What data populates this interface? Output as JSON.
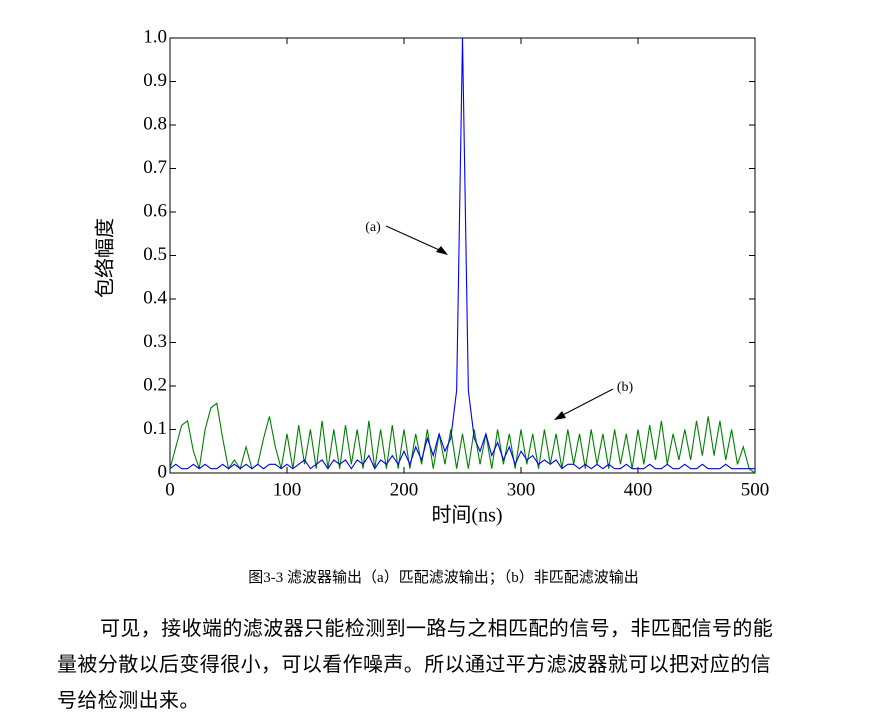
{
  "chart_data": {
    "type": "line",
    "xlabel": "时间(ns)",
    "ylabel": "包络幅度",
    "xlim": [
      0,
      500
    ],
    "ylim": [
      0,
      1
    ],
    "xticks": [
      0,
      100,
      200,
      300,
      400,
      500
    ],
    "yticks": [
      0,
      0.1,
      0.2,
      0.3,
      0.4,
      0.5,
      0.6,
      0.7,
      0.8,
      0.9,
      {
        "value": 1,
        "label": "1.0"
      }
    ],
    "x": [
      0,
      5,
      10,
      15,
      20,
      25,
      30,
      35,
      40,
      45,
      50,
      55,
      60,
      65,
      70,
      75,
      80,
      85,
      90,
      95,
      100,
      105,
      110,
      115,
      120,
      125,
      130,
      135,
      140,
      145,
      150,
      155,
      160,
      165,
      170,
      175,
      180,
      185,
      190,
      195,
      200,
      205,
      210,
      215,
      220,
      225,
      230,
      235,
      240,
      245,
      250,
      255,
      260,
      265,
      270,
      275,
      280,
      285,
      290,
      295,
      300,
      305,
      310,
      315,
      320,
      325,
      330,
      335,
      340,
      345,
      350,
      355,
      360,
      365,
      370,
      375,
      380,
      385,
      390,
      395,
      400,
      405,
      410,
      415,
      420,
      425,
      430,
      435,
      440,
      445,
      450,
      455,
      460,
      465,
      470,
      475,
      480,
      485,
      490,
      495,
      500
    ],
    "series": [
      {
        "color": "#0000ff",
        "values": [
          0.01,
          0.02,
          0.01,
          0.01,
          0.02,
          0.01,
          0.02,
          0.01,
          0.01,
          0.02,
          0.01,
          0.02,
          0.01,
          0.02,
          0.01,
          0.02,
          0.01,
          0.02,
          0.02,
          0.01,
          0.02,
          0.01,
          0.02,
          0.03,
          0.01,
          0.02,
          0.03,
          0.01,
          0.03,
          0.02,
          0.03,
          0.01,
          0.03,
          0.02,
          0.04,
          0.01,
          0.03,
          0.02,
          0.04,
          0.02,
          0.05,
          0.02,
          0.06,
          0.03,
          0.08,
          0.04,
          0.09,
          0.05,
          0.08,
          0.19,
          1,
          0.19,
          0.08,
          0.05,
          0.09,
          0.04,
          0.07,
          0.03,
          0.06,
          0.02,
          0.05,
          0.03,
          0.04,
          0.02,
          0.03,
          0.02,
          0.03,
          0.01,
          0.02,
          0.02,
          0.01,
          0.02,
          0.01,
          0.02,
          0.01,
          0.02,
          0.01,
          0.01,
          0.02,
          0.01,
          0.01,
          0.01,
          0.02,
          0.01,
          0.01,
          0.02,
          0.01,
          0.01,
          0.02,
          0.01,
          0.01,
          0.02,
          0.01,
          0.01,
          0.01,
          0.02,
          0.01,
          0.01,
          0.01,
          0.01,
          0.01
        ]
      },
      {
        "color": "#008000",
        "values": [
          0.01,
          0.06,
          0.11,
          0.12,
          0.05,
          0.01,
          0.1,
          0.15,
          0.16,
          0.08,
          0.01,
          0.03,
          0.01,
          0.06,
          0.01,
          0.02,
          0.08,
          0.13,
          0.06,
          0.01,
          0.09,
          0.01,
          0.11,
          0.02,
          0.1,
          0.01,
          0.12,
          0.01,
          0.1,
          0.01,
          0.11,
          0.02,
          0.1,
          0.01,
          0.12,
          0.01,
          0.1,
          0.01,
          0.11,
          0.01,
          0.1,
          0.01,
          0.09,
          0.02,
          0.1,
          0.01,
          0.09,
          0.02,
          0.1,
          0.01,
          0.09,
          0.01,
          0.1,
          0.02,
          0.09,
          0.01,
          0.1,
          0.02,
          0.09,
          0.01,
          0.1,
          0.02,
          0.09,
          0.01,
          0.1,
          0.02,
          0.09,
          0.01,
          0.1,
          0.02,
          0.09,
          0.01,
          0.1,
          0.02,
          0.09,
          0.01,
          0.1,
          0.02,
          0.09,
          0.01,
          0.1,
          0.02,
          0.11,
          0.03,
          0.12,
          0.02,
          0.09,
          0.03,
          0.1,
          0.03,
          0.12,
          0.04,
          0.13,
          0.04,
          0.12,
          0.03,
          0.1,
          0.02,
          0.06,
          0.01,
          0
        ]
      }
    ],
    "annotations": [
      "(a)",
      "(b)"
    ]
  },
  "caption": "图3-3 滤波器输出（a）匹配滤波输出；（b）非匹配滤波输出",
  "paragraph": [
    "可见，接收端的滤波器只能检测到一路与之相匹配的信号，非匹配信号的能",
    "量被分散以后变得很小，可以看作噪声。所以通过平方滤波器就可以把对应的信",
    "号给检测出来。"
  ]
}
